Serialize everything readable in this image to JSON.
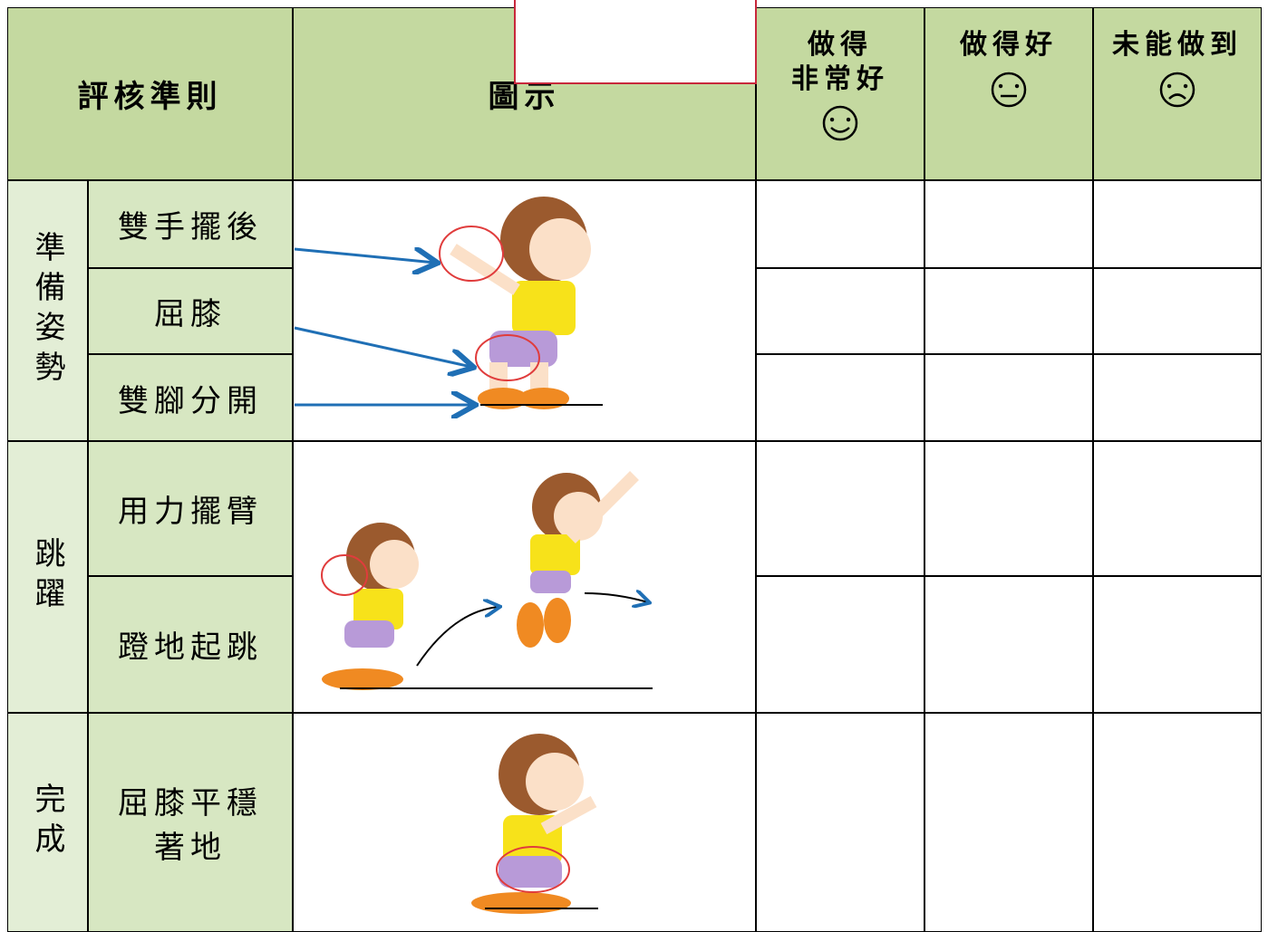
{
  "header": {
    "criteria": "評核準則",
    "illustration": "圖示",
    "ratings": [
      "做得\n非常好",
      "做得好",
      "未能做到"
    ]
  },
  "groups": [
    {
      "label": "準備姿勢",
      "items": [
        "雙手擺後",
        "屈膝",
        "雙腳分開"
      ]
    },
    {
      "label": "跳躍",
      "items": [
        "用力擺臂",
        "蹬地起跳"
      ]
    },
    {
      "label": "完成",
      "items": [
        "屈膝平穩著地"
      ]
    }
  ]
}
